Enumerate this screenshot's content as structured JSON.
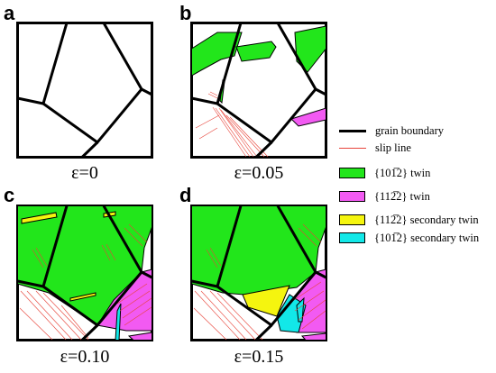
{
  "panels": [
    {
      "letter": "a",
      "strain": "ε=0"
    },
    {
      "letter": "b",
      "strain": "ε=0.05"
    },
    {
      "letter": "c",
      "strain": "ε=0.10"
    },
    {
      "letter": "d",
      "strain": "ε=0.15"
    }
  ],
  "legend": {
    "grain_boundary": "grain boundary",
    "slip_line": "slip line",
    "twin_1012": "{101̅2} twin",
    "twin_1122": "{112̅2} twin",
    "secondary_1122": "{112̅2} secondary twin",
    "secondary_1012": "{101̅2} secondary twin"
  },
  "colors": {
    "grain_boundary": "#000000",
    "slip_line": "#e8443a",
    "twin_1012": "#22e61b",
    "twin_1122": "#f25af2",
    "secondary_1122": "#f5f50f",
    "secondary_1012": "#12e8e8"
  }
}
